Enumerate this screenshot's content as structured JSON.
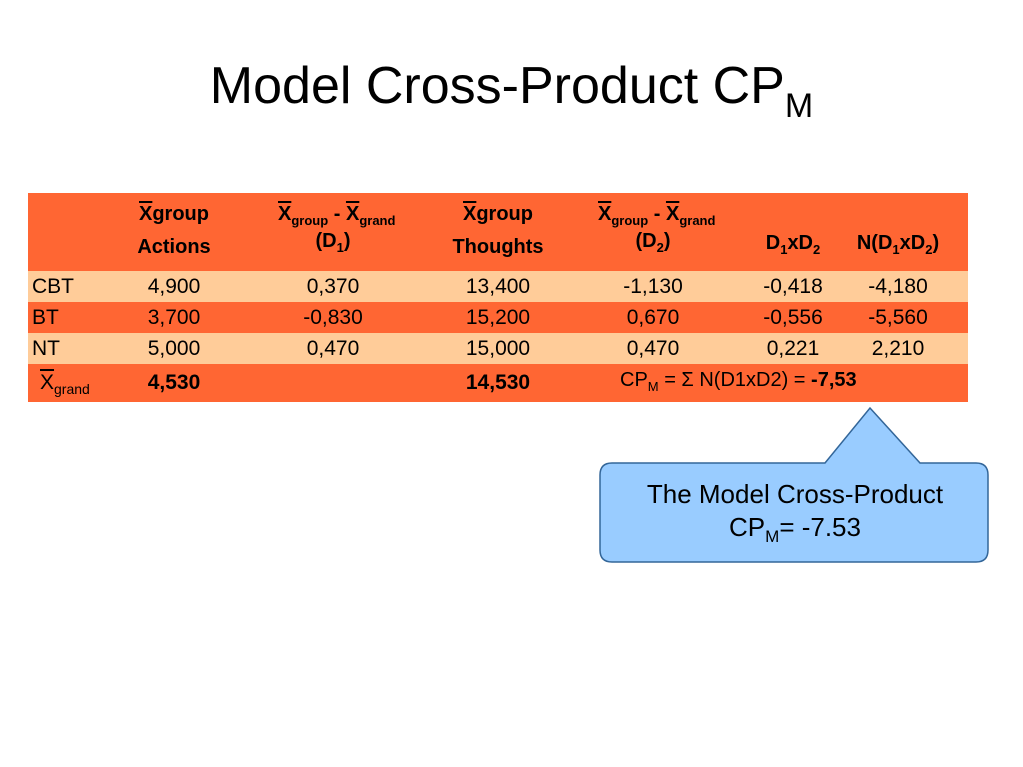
{
  "title": {
    "main": "Model Cross-Product CP",
    "sub": "M"
  },
  "table": {
    "headers": {
      "c1": {
        "sym": "X",
        "text": "group",
        "line2": "Actions"
      },
      "c2": {
        "x1": "X",
        "s1": "group",
        "minus": "-",
        "x2": "X",
        "s2": "grand",
        "line2": "(D",
        "line2_sub": "1",
        "line2_end": ")"
      },
      "c3": {
        "sym": "X",
        "text": "group",
        "line2": "Thoughts"
      },
      "c4": {
        "x1": "X",
        "s1": "group",
        "minus": "-",
        "x2": "X",
        "s2": "grand",
        "line2": "(D",
        "line2_sub": "2",
        "line2_end": ")"
      },
      "c5": {
        "a": "D",
        "a_sub": "1",
        "b": "xD",
        "b_sub": "2"
      },
      "c6": {
        "a": "N(D",
        "a_sub": "1",
        "b": "xD",
        "b_sub": "2",
        "c": ")"
      }
    },
    "rows": [
      {
        "label": "CBT",
        "v": [
          "4,900",
          "0,370",
          "13,400",
          "-1,130",
          "-0,418",
          "-4,180"
        ]
      },
      {
        "label": "BT",
        "v": [
          "3,700",
          "-0,830",
          "15,200",
          "0,670",
          "-0,556",
          "-5,560"
        ]
      },
      {
        "label": "NT",
        "v": [
          "5,000",
          "0,470",
          "15,000",
          "0,470",
          "0,221",
          "2,210"
        ]
      }
    ],
    "grand": {
      "label_sym": "X",
      "label_sub": "grand",
      "actions": "4,530",
      "thoughts": "14,530",
      "formula_a": "CP",
      "formula_sub": "M",
      "formula_b": " = Σ N(D1xD2) = ",
      "formula_value": "-7,53"
    }
  },
  "callout": {
    "line1": "The Model Cross-Product",
    "line2_a": "CP",
    "line2_sub": "M",
    "line2_b": "= -7.53"
  },
  "colors": {
    "header": "#ff6633",
    "row_light": "#ffcc99",
    "callout_fill": "#99ccff",
    "callout_border": "#336699"
  }
}
